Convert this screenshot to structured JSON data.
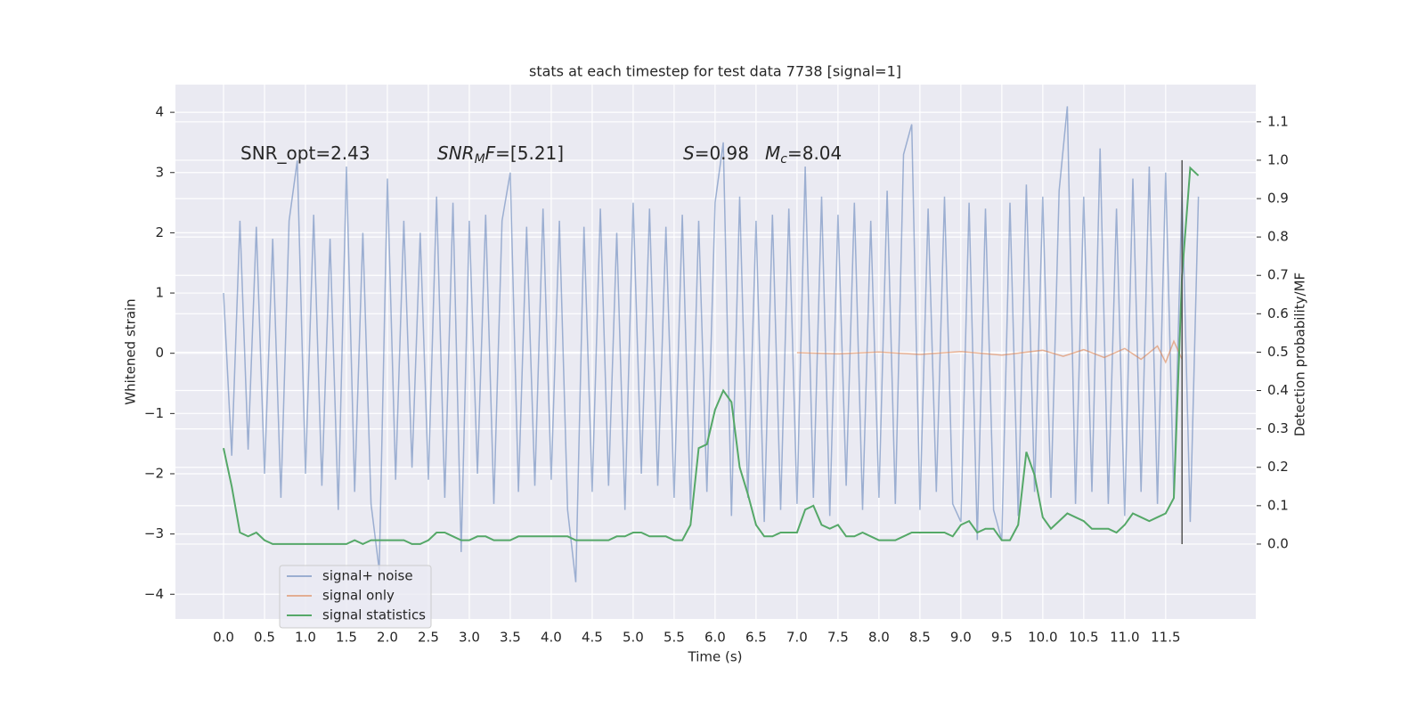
{
  "chart_data": {
    "type": "line",
    "title": "stats at each timestep for test data 7738 [signal=1]",
    "xlabel": "Time (s)",
    "ylabel": "Whitened strain",
    "y2label": "Detection probability/MF",
    "annotations": [
      [
        {
          "text": "SNR_opt=2.43",
          "style": "normal"
        }
      ],
      [
        {
          "text": "SNR",
          "style": "italic"
        },
        {
          "text": "M",
          "style": "sub"
        },
        {
          "text": "F",
          "style": "italic"
        },
        {
          "text": "=[5.21]",
          "style": "normal"
        }
      ],
      [
        {
          "text": "S",
          "style": "italic"
        },
        {
          "text": "=0.98",
          "style": "normal"
        }
      ],
      [
        {
          "text": "M",
          "style": "italic"
        },
        {
          "text": "c",
          "style": "sub"
        },
        {
          "text": "=8.04",
          "style": "normal"
        }
      ]
    ],
    "xlim": [
      -0.587,
      12.6
    ],
    "ylim": [
      -4.41,
      4.46
    ],
    "y2lim": [
      -0.195,
      1.197
    ],
    "xticks": [
      {
        "value": 0,
        "label": "0.0"
      },
      0.5,
      {
        "value": 1,
        "label": "1.0"
      },
      1.5,
      {
        "value": 2,
        "label": "2.0"
      },
      2.5,
      {
        "value": 3,
        "label": "3.0"
      },
      3.5,
      {
        "value": 4,
        "label": "4.0"
      },
      4.5,
      {
        "value": 5,
        "label": "5.0"
      },
      5.5,
      {
        "value": 6,
        "label": "6.0"
      },
      6.5,
      {
        "value": 7,
        "label": "7.0"
      },
      7.5,
      {
        "value": 8,
        "label": "8.0"
      },
      8.5,
      {
        "value": 9,
        "label": "9.0"
      },
      9.5,
      {
        "value": 10,
        "label": "10.0"
      },
      10.5,
      {
        "value": 11,
        "label": "11.0"
      },
      11.5
    ],
    "yticks": [
      {
        "value": -4,
        "label": "−4"
      },
      {
        "value": -3,
        "label": "−3"
      },
      {
        "value": -2,
        "label": "−2"
      },
      {
        "value": -1,
        "label": "−1"
      },
      0,
      1,
      2,
      3,
      4
    ],
    "y2ticks": [
      {
        "value": 0,
        "label": "0.0"
      },
      0.1,
      0.2,
      0.3,
      0.4,
      0.5,
      0.6,
      0.7,
      0.8,
      0.9,
      {
        "value": 1,
        "label": "1.0"
      },
      1.1
    ],
    "grid": true,
    "legend": "lower left",
    "x": [
      0,
      0.1,
      0.2,
      0.3,
      0.4,
      0.5,
      0.6,
      0.7,
      0.8,
      0.9,
      1,
      1.1,
      1.2,
      1.3,
      1.4,
      1.5,
      1.6,
      1.7,
      1.8,
      1.9,
      2,
      2.1,
      2.2,
      2.3,
      2.4,
      2.5,
      2.6,
      2.7,
      2.8,
      2.9,
      3,
      3.1,
      3.2,
      3.3,
      3.4,
      3.5,
      3.6,
      3.7,
      3.8,
      3.9,
      4,
      4.1,
      4.2,
      4.3,
      4.4,
      4.5,
      4.6,
      4.7,
      4.8,
      4.9,
      5,
      5.1,
      5.2,
      5.3,
      5.4,
      5.5,
      5.6,
      5.7,
      5.8,
      5.9,
      6,
      6.1,
      6.2,
      6.3,
      6.4,
      6.5,
      6.6,
      6.7,
      6.8,
      6.9,
      7,
      7.1,
      7.2,
      7.3,
      7.4,
      7.5,
      7.6,
      7.7,
      7.8,
      7.9,
      8,
      8.1,
      8.2,
      8.3,
      8.4,
      8.5,
      8.6,
      8.7,
      8.8,
      8.9,
      9,
      9.1,
      9.2,
      9.3,
      9.4,
      9.5,
      9.6,
      9.7,
      9.8,
      9.9,
      10,
      10.1,
      10.2,
      10.3,
      10.4,
      10.5,
      10.6,
      10.7,
      10.8,
      10.9,
      11,
      11.1,
      11.2,
      11.3,
      11.4,
      11.5,
      11.6,
      11.7,
      11.8,
      11.9
    ],
    "series": [
      {
        "name": "signal+ noise",
        "color": "#4c72b0",
        "alpha": 0.5,
        "values": [
          1.0,
          -1.7,
          2.2,
          -1.6,
          2.1,
          -2.0,
          1.9,
          -2.4,
          2.2,
          3.2,
          -2.0,
          2.3,
          -2.2,
          1.9,
          -2.6,
          3.1,
          -2.3,
          2.0,
          -2.5,
          -3.6,
          2.9,
          -2.1,
          2.2,
          -1.9,
          2.0,
          -2.1,
          2.6,
          -2.4,
          2.5,
          -3.3,
          2.2,
          -2.0,
          2.3,
          -2.5,
          2.2,
          3.0,
          -2.3,
          2.1,
          -2.2,
          2.4,
          -2.1,
          2.2,
          -2.6,
          -3.8,
          2.1,
          -2.3,
          2.4,
          -2.2,
          2.0,
          -2.6,
          2.5,
          -2.0,
          2.4,
          -2.2,
          2.1,
          -2.4,
          2.3,
          -2.6,
          2.2,
          -2.3,
          2.5,
          3.5,
          -2.7,
          2.6,
          -2.4,
          2.2,
          -2.8,
          2.3,
          -2.6,
          2.4,
          -2.5,
          3.1,
          -2.4,
          2.6,
          -2.7,
          2.3,
          -2.2,
          2.5,
          -2.6,
          2.2,
          -2.4,
          2.7,
          -2.5,
          3.3,
          3.8,
          -2.6,
          2.4,
          -2.3,
          2.6,
          -2.5,
          -2.8,
          2.5,
          -3.1,
          2.4,
          -2.6,
          -3.1,
          2.5,
          -2.7,
          2.8,
          -2.3,
          2.6,
          -2.4,
          2.7,
          4.1,
          -2.5,
          2.6,
          -2.3,
          3.4,
          -2.5,
          2.4,
          -2.7,
          2.9,
          -2.3,
          3.1,
          -2.5,
          3.0,
          -2.4,
          2.7,
          -2.8,
          2.6
        ]
      },
      {
        "name": "signal only",
        "color": "#dd8452",
        "alpha": 0.6,
        "x": [
          7.0,
          7.5,
          8.0,
          8.5,
          9.0,
          9.5,
          10.0,
          10.25,
          10.5,
          10.75,
          11.0,
          11.2,
          11.4,
          11.5,
          11.6,
          11.7
        ],
        "values": [
          0.01,
          -0.01,
          0.02,
          -0.02,
          0.03,
          -0.03,
          0.05,
          -0.05,
          0.06,
          -0.07,
          0.08,
          -0.1,
          0.12,
          -0.15,
          0.2,
          -0.1
        ]
      },
      {
        "name": "signal statistics",
        "color": "#55a868",
        "alpha": 1,
        "axis": "y2",
        "values": [
          0.25,
          0.15,
          0.03,
          0.02,
          0.03,
          0.01,
          0.0,
          0.0,
          0.0,
          0.0,
          0.0,
          0.0,
          0.0,
          0.0,
          0.0,
          0.0,
          0.01,
          0.0,
          0.01,
          0.01,
          0.01,
          0.01,
          0.01,
          0.0,
          0.0,
          0.01,
          0.03,
          0.03,
          0.02,
          0.01,
          0.01,
          0.02,
          0.02,
          0.01,
          0.01,
          0.01,
          0.02,
          0.02,
          0.02,
          0.02,
          0.02,
          0.02,
          0.02,
          0.01,
          0.01,
          0.01,
          0.01,
          0.01,
          0.02,
          0.02,
          0.03,
          0.03,
          0.02,
          0.02,
          0.02,
          0.01,
          0.01,
          0.05,
          0.25,
          0.26,
          0.35,
          0.4,
          0.37,
          0.2,
          0.13,
          0.05,
          0.02,
          0.02,
          0.03,
          0.03,
          0.03,
          0.09,
          0.1,
          0.05,
          0.04,
          0.05,
          0.02,
          0.02,
          0.03,
          0.02,
          0.01,
          0.01,
          0.01,
          0.02,
          0.03,
          0.03,
          0.03,
          0.03,
          0.03,
          0.02,
          0.05,
          0.06,
          0.03,
          0.04,
          0.04,
          0.01,
          0.01,
          0.05,
          0.24,
          0.18,
          0.07,
          0.04,
          0.06,
          0.08,
          0.07,
          0.06,
          0.04,
          0.04,
          0.04,
          0.03,
          0.05,
          0.08,
          0.07,
          0.06,
          0.07,
          0.08,
          0.12,
          0.7,
          0.98,
          0.96
        ]
      }
    ],
    "vline": {
      "x": 11.7,
      "y2": [
        0,
        1.0
      ],
      "color": "#555555"
    }
  }
}
